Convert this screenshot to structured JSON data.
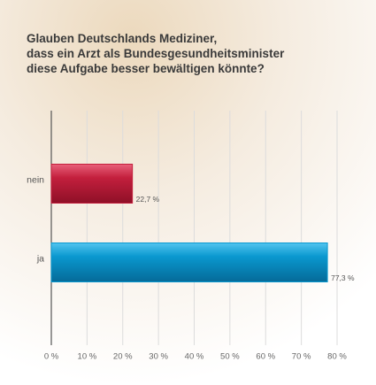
{
  "chart_data": {
    "type": "bar",
    "orientation": "horizontal",
    "title": [
      "Glauben Deutschlands Mediziner,",
      "dass ein Arzt als Bundesgesundheitsminister",
      "diese Aufgabe besser bewältigen könnte?"
    ],
    "categories": [
      "nein",
      "ja"
    ],
    "values": [
      22.7,
      77.3
    ],
    "value_labels": [
      "22,7 %",
      "77,3 %"
    ],
    "colors": [
      "#c31f3d",
      "#0a98cf"
    ],
    "xlim": [
      0,
      80
    ],
    "xticks": [
      {
        "value": 0,
        "label": "0 %"
      },
      {
        "value": 10,
        "label": "10 %"
      },
      {
        "value": 20,
        "label": "20 %"
      },
      {
        "value": 30,
        "label": "30 %"
      },
      {
        "value": 40,
        "label": "40 %"
      },
      {
        "value": 50,
        "label": "50 %"
      },
      {
        "value": 60,
        "label": "60 %"
      },
      {
        "value": 70,
        "label": "70 %"
      },
      {
        "value": 80,
        "label": "80 %"
      }
    ],
    "grid": true
  }
}
